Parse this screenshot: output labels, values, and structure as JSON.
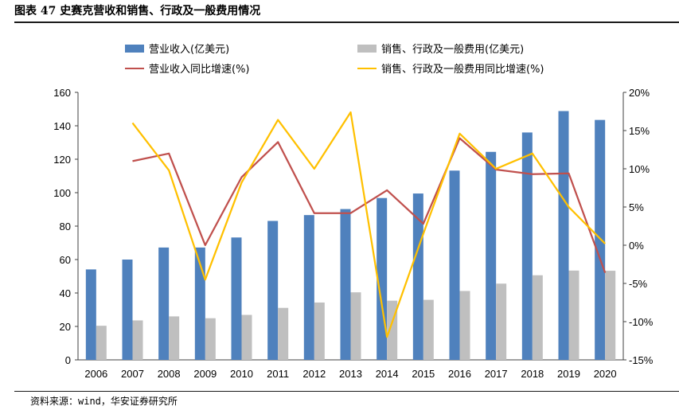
{
  "figure": {
    "title": "图表 47 史赛克营收和销售、行政及一般费用情况",
    "source": "资料来源：wind，华安证券研究所"
  },
  "colors": {
    "revenue_bar": "#4F81BD",
    "sga_bar": "#BFBFBF",
    "revenue_growth_line": "#C0504D",
    "sga_growth_line": "#FFC000",
    "axis": "#404040"
  },
  "chart_data": {
    "type": "bar",
    "title": "",
    "categories": [
      "2006",
      "2007",
      "2008",
      "2009",
      "2010",
      "2011",
      "2012",
      "2013",
      "2014",
      "2015",
      "2016",
      "2017",
      "2018",
      "2019",
      "2020"
    ],
    "series": [
      {
        "name": "营业收入(亿美元)",
        "kind": "bar",
        "axis": "left",
        "values": [
          54.1,
          60.0,
          67.2,
          67.2,
          73.2,
          83.1,
          86.6,
          90.2,
          96.8,
          99.5,
          113.2,
          124.4,
          136.0,
          148.8,
          143.5
        ]
      },
      {
        "name": "销售、行政及一般费用(亿美元)",
        "kind": "bar",
        "axis": "left",
        "values": [
          20.4,
          23.6,
          26.0,
          24.9,
          26.9,
          31.1,
          34.3,
          40.4,
          35.4,
          35.9,
          41.2,
          45.6,
          50.6,
          53.4,
          53.3
        ]
      },
      {
        "name": "营业收入同比增速(%)",
        "kind": "line",
        "axis": "right",
        "values": [
          null,
          11.0,
          12.0,
          0.0,
          8.9,
          13.5,
          4.2,
          4.2,
          7.2,
          2.8,
          14.0,
          9.9,
          9.3,
          9.4,
          -3.6
        ]
      },
      {
        "name": "销售、行政及一般费用同比增速(%)",
        "kind": "line",
        "axis": "right",
        "values": [
          null,
          16.0,
          9.8,
          -4.5,
          8.2,
          16.4,
          10.0,
          17.4,
          -12.0,
          1.5,
          14.6,
          10.0,
          12.0,
          5.0,
          0.2
        ]
      }
    ],
    "y_left": {
      "min": 0,
      "max": 160,
      "step": 20,
      "ticks": [
        "0",
        "20",
        "40",
        "60",
        "80",
        "100",
        "120",
        "140",
        "160"
      ]
    },
    "y_right": {
      "min": -15,
      "max": 20,
      "step": 5,
      "ticks": [
        "-15%",
        "-10%",
        "-5%",
        "0%",
        "5%",
        "10%",
        "15%",
        "20%"
      ]
    },
    "legend_position": "top",
    "grid": false
  }
}
